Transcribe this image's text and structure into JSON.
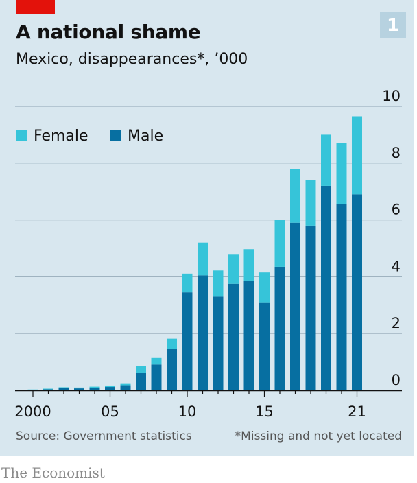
{
  "title": "A national shame",
  "subtitle": "Mexico, disappearances*, ’000",
  "chart_number": "1",
  "source": "Source: Government statistics",
  "footnote": "*Missing and not yet located",
  "logo": "The Economist",
  "colors": {
    "background": "#d8e7ef",
    "female": "#36c4d9",
    "male": "#076fa1",
    "accent_red": "#e3120b",
    "gridline": "#9fb3c0"
  },
  "chart_data": {
    "type": "bar",
    "stacked": true,
    "title": "A national shame",
    "subtitle": "Mexico, disappearances*, ’000",
    "x": [
      2000,
      2001,
      2002,
      2003,
      2004,
      2005,
      2006,
      2007,
      2008,
      2009,
      2010,
      2011,
      2012,
      2013,
      2014,
      2015,
      2016,
      2017,
      2018,
      2019,
      2020,
      2021
    ],
    "x_tick_labels": [
      "2000",
      "05",
      "10",
      "15",
      "21"
    ],
    "x_tick_values": [
      2000,
      2005,
      2010,
      2015,
      2021
    ],
    "series": [
      {
        "name": "Male",
        "values": [
          0.02,
          0.04,
          0.08,
          0.07,
          0.09,
          0.12,
          0.18,
          0.62,
          0.91,
          1.45,
          3.45,
          4.05,
          3.3,
          3.75,
          3.85,
          3.1,
          4.35,
          5.9,
          5.8,
          7.2,
          6.55,
          6.9
        ]
      },
      {
        "name": "Female",
        "values": [
          0.01,
          0.02,
          0.03,
          0.03,
          0.04,
          0.05,
          0.07,
          0.23,
          0.23,
          0.37,
          0.66,
          1.15,
          0.92,
          1.05,
          1.12,
          1.05,
          1.65,
          1.9,
          1.6,
          1.8,
          2.15,
          2.75
        ]
      }
    ],
    "y_ticks": [
      0,
      2,
      4,
      6,
      8,
      10
    ],
    "ylim": [
      0,
      10
    ],
    "legend": {
      "placement": "top-left"
    },
    "grid": true
  }
}
